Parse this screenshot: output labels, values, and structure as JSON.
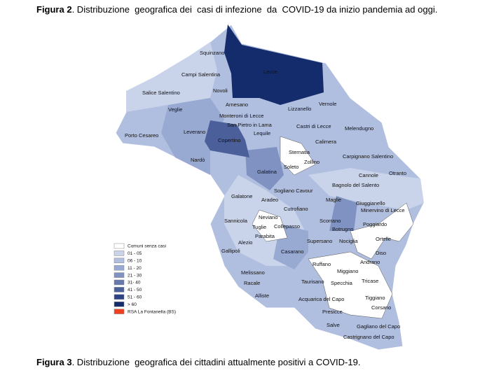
{
  "figure2": {
    "label": "Figura 2",
    "caption": ". Distribuzione  geografica dei  casi di infezione  da  COVID-19 da inizio pandemia ad oggi."
  },
  "figure3": {
    "label": "Figura 3",
    "caption": ". Distribuzione  geografica dei cittadini attualmente positivi a COVID-19."
  },
  "places": [
    "Squinzano",
    "Lecce",
    "Campi Salentina",
    "Salice Salentino",
    "Novoli",
    "Vernole",
    "Arnesano",
    "Veglie",
    "Lizzanello",
    "Monteroni di Lecce",
    "San Pietro in Lama",
    "Castri di Lecce",
    "Melendugno",
    "Porto Cesareo",
    "Leverano",
    "Lequile",
    "Copertino",
    "Calimera",
    "Sternatia",
    "Carpignano Salentino",
    "Nardò",
    "Zollino",
    "Soleto",
    "Galatina",
    "Cannole",
    "Otranto",
    "Bagnolo del Salento",
    "Sogliano Cavour",
    "Galatone",
    "Aradeo",
    "Maglie",
    "Giuggianello",
    "Cutrofiano",
    "Minervino di Lecce",
    "Neviano",
    "Sannicola",
    "Scorrano",
    "Poggiardo",
    "Tuglie",
    "Collepasso",
    "Botrugno",
    "Parabita",
    "Supersano",
    "Nociglia",
    "Ortelle",
    "Alezio",
    "Gallipoli",
    "Casarano",
    "Diso",
    "Andrano",
    "Ruffano",
    "Miggiano",
    "Melissano",
    "Racale",
    "Taurisano",
    "Specchia",
    "Tricase",
    "Alliste",
    "Acquarica del Capo",
    "Tiggiano",
    "Corsano",
    "Presicce",
    "Salve",
    "Gagliano del Capo",
    "Castrignano del Capo"
  ],
  "legend": [
    {
      "label": "Comuni senza casi",
      "color": "#ffffff"
    },
    {
      "label": "01 - 05",
      "color": "#c9d3ea"
    },
    {
      "label": "06 - 10",
      "color": "#b0bedf"
    },
    {
      "label": "11 - 20",
      "color": "#98a9d2"
    },
    {
      "label": "21 - 30",
      "color": "#7f92c2"
    },
    {
      "label": "31- 40",
      "color": "#6678ae"
    },
    {
      "label": "41 - 50",
      "color": "#4b5f9a"
    },
    {
      "label": "51 - 60",
      "color": "#2c4486"
    },
    {
      "label": "> 60",
      "color": "#142c6b"
    },
    {
      "label": "RSA La Fontanella (BS)",
      "color": "#f04020"
    }
  ]
}
